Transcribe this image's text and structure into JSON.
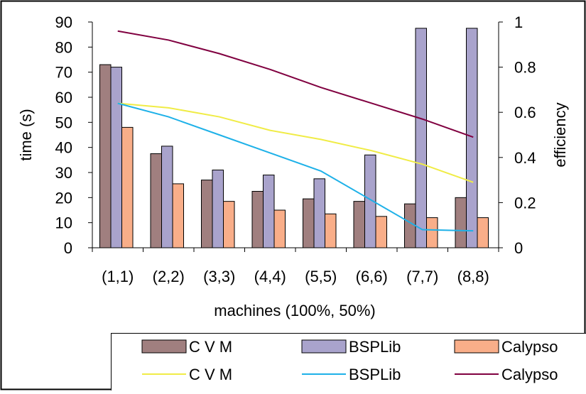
{
  "chart_data": {
    "type": "bar+line",
    "categories": [
      "(1,1)",
      "(2,2)",
      "(3,3)",
      "(4,4)",
      "(5,5)",
      "(6,6)",
      "(7,7)",
      "(8,8)"
    ],
    "xlabel": "machines (100%, 50%)",
    "ylabel": "time (s)",
    "y2label": "efficiency",
    "ylim": [
      0,
      90
    ],
    "y2lim": [
      0,
      1
    ],
    "yticks": [
      "0",
      "10",
      "20",
      "30",
      "40",
      "50",
      "60",
      "70",
      "80",
      "90"
    ],
    "y2ticks": [
      "0",
      "0.2",
      "0.4",
      "0.6",
      "0.8",
      "1"
    ],
    "bar_series": [
      {
        "name": "C   V   M",
        "color": "#a07f7f",
        "values": [
          73,
          37.5,
          27,
          22.5,
          19.5,
          18.5,
          17.5,
          20
        ]
      },
      {
        "name": "BSPLib",
        "color": "#a9a3cc",
        "values": [
          72,
          40.5,
          31,
          29,
          27.5,
          37,
          87.5,
          87.5
        ]
      },
      {
        "name": "Calypso",
        "color": "#f9ae89",
        "values": [
          48,
          25.5,
          18.5,
          15,
          13.5,
          12.5,
          12,
          12
        ]
      }
    ],
    "line_series": [
      {
        "name": "C   V   M",
        "color": "#f0ec46",
        "values": [
          0.64,
          0.62,
          0.58,
          0.52,
          0.48,
          0.43,
          0.37,
          0.29
        ]
      },
      {
        "name": "BSPLib",
        "color": "#1eb1e8",
        "values": [
          0.64,
          0.58,
          0.5,
          0.42,
          0.34,
          0.21,
          0.08,
          0.075
        ]
      },
      {
        "name": "Calypso",
        "color": "#800040",
        "values": [
          0.96,
          0.92,
          0.86,
          0.79,
          0.71,
          0.64,
          0.57,
          0.49
        ]
      }
    ],
    "legend": {
      "placement": "bottom-right",
      "bar_labels": [
        "C   V   M",
        "BSPLib",
        "Calypso"
      ],
      "line_labels": [
        "C   V   M",
        "BSPLib",
        "Calypso"
      ]
    },
    "grid": false
  }
}
